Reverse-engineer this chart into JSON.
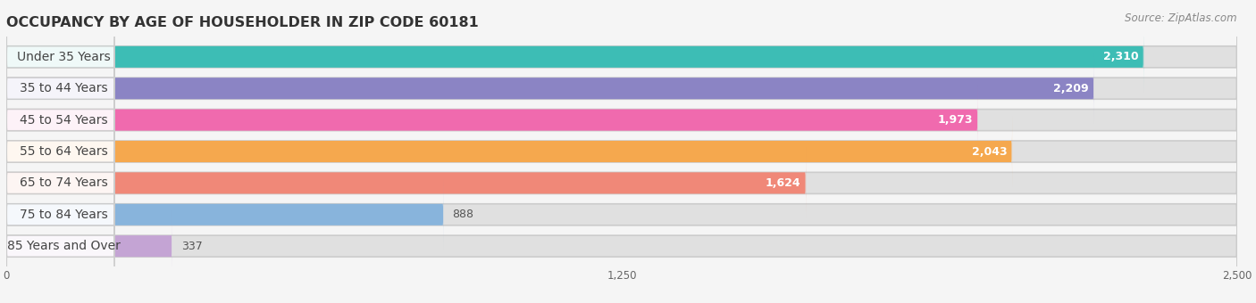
{
  "title": "OCCUPANCY BY AGE OF HOUSEHOLDER IN ZIP CODE 60181",
  "source": "Source: ZipAtlas.com",
  "categories": [
    "Under 35 Years",
    "35 to 44 Years",
    "45 to 54 Years",
    "55 to 64 Years",
    "65 to 74 Years",
    "75 to 84 Years",
    "85 Years and Over"
  ],
  "values": [
    2310,
    2209,
    1973,
    2043,
    1624,
    888,
    337
  ],
  "bar_colors": [
    "#3DBDB5",
    "#8B84C4",
    "#F06AAE",
    "#F5A84E",
    "#F08878",
    "#88B4DC",
    "#C4A4D4"
  ],
  "xlim": [
    0,
    2500
  ],
  "xticks": [
    0,
    1250,
    2500
  ],
  "background_color": "#f5f5f5",
  "bar_bg_color": "#e0e0e0",
  "title_fontsize": 11.5,
  "label_fontsize": 10,
  "value_fontsize": 9,
  "source_fontsize": 8.5,
  "label_text_color": "#444444"
}
